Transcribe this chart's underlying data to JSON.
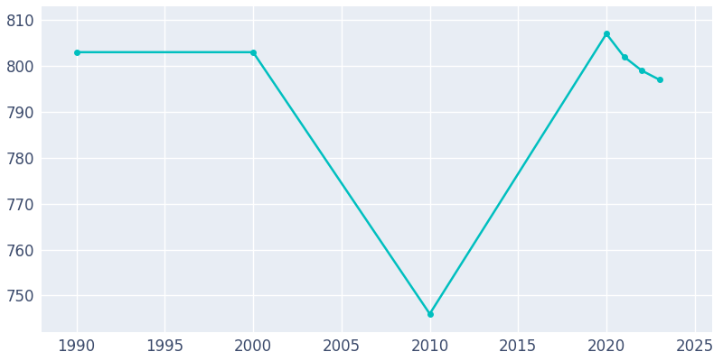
{
  "x": [
    1990,
    2000,
    2010,
    2020,
    2021,
    2022,
    2023
  ],
  "y": [
    803,
    803,
    746,
    807,
    802,
    799,
    797
  ],
  "line_color": "#00BFBF",
  "marker": "o",
  "marker_size": 4,
  "line_width": 1.8,
  "bg_color": "#E8EDF4",
  "fig_bg_color": "#FFFFFF",
  "grid_color": "#FFFFFF",
  "xlabel": "",
  "ylabel": "",
  "xlim": [
    1988,
    2026
  ],
  "ylim": [
    742,
    813
  ],
  "xticks": [
    1990,
    1995,
    2000,
    2005,
    2010,
    2015,
    2020,
    2025
  ],
  "yticks": [
    750,
    760,
    770,
    780,
    790,
    800,
    810
  ],
  "tick_color": "#3B4A6B",
  "tick_fontsize": 12
}
